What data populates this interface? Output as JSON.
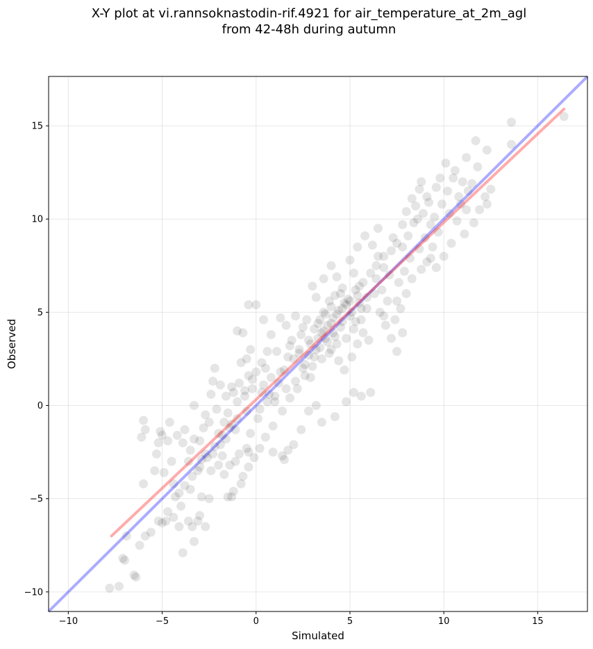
{
  "chart_data": {
    "type": "scatter",
    "title_line1": "X-Y plot at vi.rannsoknastodin-rif.4921 for air_temperature_at_2m_agl",
    "title_line2": "from 42-48h during autumn",
    "xlabel": "Simulated",
    "ylabel": "Observed",
    "xlim": [
      -11.05,
      17.65
    ],
    "ylim": [
      -11.05,
      17.65
    ],
    "xticks": [
      -10,
      -5,
      0,
      5,
      10,
      15
    ],
    "yticks": [
      -10,
      -5,
      0,
      5,
      10,
      15
    ],
    "xtick_labels": [
      "−10",
      "−5",
      "0",
      "5",
      "10",
      "15"
    ],
    "ytick_labels": [
      "−10",
      "−5",
      "0",
      "5",
      "10",
      "15"
    ],
    "grid": true,
    "marker_color": "#000000",
    "marker_opacity": 0.1,
    "identity_line": {
      "color": "#0000ff",
      "opacity": 0.33,
      "x": [
        -11.05,
        17.65
      ],
      "y": [
        -11.05,
        17.65
      ]
    },
    "fit_line": {
      "color": "#ff0000",
      "opacity": 0.33,
      "x": [
        -7.7,
        16.4
      ],
      "y": [
        -7.0,
        15.9
      ]
    },
    "points": [
      [
        -7.8,
        -9.8
      ],
      [
        -7.3,
        -9.7
      ],
      [
        -7.0,
        -8.3
      ],
      [
        -6.4,
        -9.2
      ],
      [
        -6.5,
        -9.1
      ],
      [
        -7.1,
        -8.2
      ],
      [
        -6.9,
        -7.0
      ],
      [
        -5.9,
        -7.0
      ],
      [
        -6.0,
        -4.2
      ],
      [
        -6.1,
        -1.7
      ],
      [
        -5.9,
        -1.3
      ],
      [
        -6.0,
        -0.8
      ],
      [
        -5.4,
        -3.5
      ],
      [
        -5.3,
        -2.6
      ],
      [
        -5.2,
        -2.0
      ],
      [
        -5.0,
        -1.6
      ],
      [
        -5.1,
        -1.4
      ],
      [
        -4.6,
        -0.9
      ],
      [
        -4.7,
        -1.9
      ],
      [
        -4.8,
        -6.2
      ],
      [
        -5.2,
        -6.2
      ],
      [
        -4.4,
        -6.0
      ],
      [
        -4.4,
        -4.2
      ],
      [
        -4.1,
        -4.7
      ],
      [
        -4.0,
        -5.4
      ],
      [
        -4.1,
        -6.5
      ],
      [
        -3.9,
        -7.9
      ],
      [
        -3.6,
        -6.2
      ],
      [
        -3.4,
        -6.5
      ],
      [
        -3.3,
        -7.3
      ],
      [
        -3.1,
        -6.2
      ],
      [
        -3.0,
        -5.9
      ],
      [
        -2.9,
        -4.9
      ],
      [
        -2.5,
        -5.0
      ],
      [
        -2.7,
        -6.5
      ],
      [
        -3.5,
        -4.5
      ],
      [
        -3.1,
        -3.5
      ],
      [
        -2.9,
        -2.9
      ],
      [
        -2.7,
        -2.6
      ],
      [
        -3.6,
        -3.0
      ],
      [
        -3.9,
        -2.0
      ],
      [
        -4.2,
        -1.6
      ],
      [
        -3.8,
        -1.3
      ],
      [
        -3.3,
        -1.8
      ],
      [
        -3.0,
        -1.9
      ],
      [
        -3.3,
        0.0
      ],
      [
        -2.7,
        -0.5
      ],
      [
        -2.5,
        -0.9
      ],
      [
        -2.1,
        -0.2
      ],
      [
        -2.4,
        0.6
      ],
      [
        -2.3,
        1.3
      ],
      [
        -2.2,
        2.0
      ],
      [
        -1.9,
        1.1
      ],
      [
        -1.6,
        0.5
      ],
      [
        -1.5,
        -0.4
      ],
      [
        -1.3,
        -1.0
      ],
      [
        -1.1,
        -1.3
      ],
      [
        -1.6,
        -1.8
      ],
      [
        -1.9,
        -2.1
      ],
      [
        -2.3,
        -2.6
      ],
      [
        -2.0,
        -3.2
      ],
      [
        -1.7,
        -3.7
      ],
      [
        -1.4,
        -3.2
      ],
      [
        -1.1,
        -3.0
      ],
      [
        -0.9,
        -2.6
      ],
      [
        -0.5,
        -2.3
      ],
      [
        -0.4,
        -2.5
      ],
      [
        -0.8,
        -4.2
      ],
      [
        -1.2,
        -4.6
      ],
      [
        -1.3,
        -4.9
      ],
      [
        -1.5,
        -4.9
      ],
      [
        -0.7,
        -3.8
      ],
      [
        -0.4,
        -3.3
      ],
      [
        -0.1,
        -2.8
      ],
      [
        0.2,
        -2.3
      ],
      [
        0.5,
        -1.7
      ],
      [
        0.9,
        -2.5
      ],
      [
        1.4,
        -2.7
      ],
      [
        1.5,
        -2.9
      ],
      [
        1.7,
        -2.4
      ],
      [
        2.0,
        -2.1
      ],
      [
        2.4,
        -1.3
      ],
      [
        2.8,
        -0.3
      ],
      [
        3.2,
        0.0
      ],
      [
        3.5,
        -0.9
      ],
      [
        4.2,
        -0.6
      ],
      [
        4.8,
        0.2
      ],
      [
        5.2,
        0.7
      ],
      [
        5.6,
        0.5
      ],
      [
        6.1,
        0.7
      ],
      [
        -1.0,
        0.2
      ],
      [
        -0.6,
        0.8
      ],
      [
        -0.4,
        1.6
      ],
      [
        -0.8,
        2.3
      ],
      [
        -0.5,
        2.5
      ],
      [
        -0.3,
        3.0
      ],
      [
        -1.0,
        4.0
      ],
      [
        -0.7,
        3.9
      ],
      [
        -0.4,
        5.4
      ],
      [
        0.0,
        5.4
      ],
      [
        0.4,
        4.6
      ],
      [
        0.8,
        3.8
      ],
      [
        0.6,
        2.9
      ],
      [
        0.3,
        2.3
      ],
      [
        0.0,
        1.8
      ],
      [
        0.4,
        1.1
      ],
      [
        0.7,
        0.6
      ],
      [
        1.0,
        0.2
      ],
      [
        1.2,
        1.2
      ],
      [
        1.5,
        1.9
      ],
      [
        1.7,
        2.6
      ],
      [
        1.9,
        3.5
      ],
      [
        1.6,
        4.3
      ],
      [
        1.3,
        4.7
      ],
      [
        2.1,
        4.8
      ],
      [
        2.5,
        4.2
      ],
      [
        2.8,
        3.5
      ],
      [
        2.3,
        2.8
      ],
      [
        2.6,
        2.2
      ],
      [
        2.9,
        1.5
      ],
      [
        3.1,
        2.6
      ],
      [
        3.4,
        3.1
      ],
      [
        3.7,
        3.6
      ],
      [
        3.3,
        4.4
      ],
      [
        3.6,
        5.0
      ],
      [
        3.9,
        5.6
      ],
      [
        3.2,
        5.8
      ],
      [
        3.0,
        6.4
      ],
      [
        3.6,
        6.8
      ],
      [
        4.0,
        7.5
      ],
      [
        4.3,
        6.9
      ],
      [
        4.6,
        6.3
      ],
      [
        4.8,
        5.4
      ],
      [
        5.0,
        4.8
      ],
      [
        4.5,
        4.2
      ],
      [
        4.2,
        3.7
      ],
      [
        4.0,
        3.0
      ],
      [
        4.4,
        2.4
      ],
      [
        4.7,
        1.9
      ],
      [
        5.1,
        2.6
      ],
      [
        5.4,
        3.3
      ],
      [
        5.7,
        3.9
      ],
      [
        5.3,
        4.5
      ],
      [
        5.6,
        5.2
      ],
      [
        5.9,
        5.8
      ],
      [
        5.5,
        6.4
      ],
      [
        5.2,
        7.1
      ],
      [
        5.0,
        7.8
      ],
      [
        5.4,
        8.5
      ],
      [
        5.8,
        9.1
      ],
      [
        6.2,
        8.6
      ],
      [
        6.5,
        8.0
      ],
      [
        6.8,
        7.4
      ],
      [
        6.4,
        6.8
      ],
      [
        6.7,
        6.2
      ],
      [
        7.0,
        5.6
      ],
      [
        6.6,
        5.0
      ],
      [
        6.9,
        4.3
      ],
      [
        7.2,
        3.6
      ],
      [
        7.5,
        2.9
      ],
      [
        7.8,
        3.9
      ],
      [
        7.4,
        4.6
      ],
      [
        7.7,
        5.2
      ],
      [
        8.0,
        6.0
      ],
      [
        7.6,
        6.6
      ],
      [
        7.9,
        7.2
      ],
      [
        8.2,
        7.9
      ],
      [
        7.8,
        8.5
      ],
      [
        8.1,
        9.1
      ],
      [
        8.4,
        9.8
      ],
      [
        8.0,
        10.4
      ],
      [
        8.3,
        11.1
      ],
      [
        8.7,
        11.6
      ],
      [
        9.1,
        11.2
      ],
      [
        8.9,
        10.3
      ],
      [
        9.3,
        9.7
      ],
      [
        9.0,
        9.0
      ],
      [
        8.7,
        8.4
      ],
      [
        9.1,
        7.7
      ],
      [
        9.4,
        8.5
      ],
      [
        9.7,
        9.3
      ],
      [
        9.5,
        10.1
      ],
      [
        9.9,
        10.8
      ],
      [
        10.2,
        11.5
      ],
      [
        9.8,
        12.2
      ],
      [
        10.1,
        13.0
      ],
      [
        10.6,
        12.6
      ],
      [
        11.0,
        12.0
      ],
      [
        10.8,
        11.2
      ],
      [
        11.2,
        10.5
      ],
      [
        10.7,
        9.9
      ],
      [
        11.1,
        9.2
      ],
      [
        10.4,
        8.7
      ],
      [
        10.0,
        8.0
      ],
      [
        9.6,
        7.4
      ],
      [
        11.6,
        9.8
      ],
      [
        11.9,
        10.5
      ],
      [
        12.2,
        11.2
      ],
      [
        11.5,
        11.9
      ],
      [
        11.8,
        12.8
      ],
      [
        12.3,
        13.7
      ],
      [
        11.7,
        14.2
      ],
      [
        11.2,
        13.3
      ],
      [
        12.5,
        11.6
      ],
      [
        12.3,
        10.8
      ],
      [
        13.6,
        15.2
      ],
      [
        13.6,
        14.0
      ],
      [
        16.4,
        15.5
      ],
      [
        1.8,
        0.4
      ],
      [
        2.2,
        0.9
      ],
      [
        1.4,
        -0.3
      ],
      [
        0.9,
        -1.1
      ],
      [
        0.1,
        -0.7
      ],
      [
        -0.3,
        -1.5
      ],
      [
        -2.8,
        -1.2
      ],
      [
        -2.0,
        -1.5
      ],
      [
        -1.7,
        -0.9
      ],
      [
        -1.2,
        0.7
      ],
      [
        -0.2,
        0.9
      ],
      [
        0.5,
        2.0
      ],
      [
        1.1,
        2.9
      ],
      [
        1.8,
        3.2
      ],
      [
        2.4,
        3.8
      ],
      [
        2.7,
        4.6
      ],
      [
        3.1,
        4.1
      ],
      [
        3.5,
        3.9
      ],
      [
        3.8,
        4.3
      ],
      [
        4.1,
        4.7
      ],
      [
        4.4,
        5.1
      ],
      [
        4.7,
        5.5
      ],
      [
        4.2,
        5.9
      ],
      [
        4.5,
        6.0
      ],
      [
        3.4,
        4.6
      ],
      [
        3.7,
        4.9
      ],
      [
        4.0,
        5.3
      ],
      [
        4.9,
        5.7
      ],
      [
        5.3,
        6.2
      ],
      [
        5.7,
        6.6
      ],
      [
        6.1,
        7.1
      ],
      [
        6.4,
        7.5
      ],
      [
        6.8,
        8.0
      ],
      [
        7.2,
        8.3
      ],
      [
        7.5,
        8.7
      ],
      [
        7.1,
        7.0
      ],
      [
        6.3,
        6.0
      ],
      [
        5.9,
        5.2
      ],
      [
        5.6,
        4.6
      ],
      [
        5.2,
        4.1
      ],
      [
        4.8,
        3.6
      ],
      [
        4.3,
        3.3
      ],
      [
        3.9,
        2.8
      ],
      [
        3.5,
        2.5
      ],
      [
        3.0,
        2.1
      ],
      [
        2.6,
        1.6
      ],
      [
        2.1,
        1.3
      ],
      [
        1.6,
        0.9
      ],
      [
        1.0,
        0.5
      ],
      [
        0.6,
        0.2
      ],
      [
        0.2,
        -0.2
      ],
      [
        -0.5,
        -0.3
      ],
      [
        -1.0,
        -0.7
      ],
      [
        -1.4,
        -1.2
      ],
      [
        -1.8,
        -1.6
      ],
      [
        -2.2,
        -2.2
      ],
      [
        -2.6,
        -2.8
      ],
      [
        -3.0,
        -3.3
      ],
      [
        -3.4,
        -3.8
      ],
      [
        -3.8,
        -4.3
      ],
      [
        -4.3,
        -4.9
      ],
      [
        -4.7,
        -5.7
      ],
      [
        -5.0,
        -6.3
      ],
      [
        -5.6,
        -6.8
      ],
      [
        -6.2,
        -7.5
      ],
      [
        2.0,
        2.5
      ],
      [
        2.3,
        3.0
      ],
      [
        2.9,
        3.3
      ],
      [
        3.3,
        3.6
      ],
      [
        3.6,
        4.0
      ],
      [
        4.0,
        4.4
      ],
      [
        4.3,
        4.9
      ],
      [
        4.6,
        5.2
      ],
      [
        5.0,
        5.6
      ],
      [
        5.4,
        5.9
      ],
      [
        3.8,
        3.4
      ],
      [
        4.1,
        3.9
      ],
      [
        4.6,
        4.5
      ],
      [
        5.1,
        5.0
      ],
      [
        5.5,
        5.5
      ],
      [
        2.5,
        2.0
      ],
      [
        2.8,
        2.7
      ],
      [
        3.2,
        3.0
      ],
      [
        -0.9,
        1.2
      ],
      [
        -0.6,
        0.5
      ],
      [
        -1.3,
        1.0
      ],
      [
        -0.2,
        1.4
      ],
      [
        0.3,
        0.7
      ],
      [
        0.8,
        1.5
      ],
      [
        1.3,
        1.8
      ],
      [
        -3.5,
        -2.4
      ],
      [
        -2.4,
        -3.5
      ],
      [
        -1.8,
        -2.7
      ],
      [
        -4.5,
        -3.0
      ],
      [
        -4.9,
        -3.6
      ],
      [
        6.5,
        9.5
      ],
      [
        7.3,
        9.0
      ],
      [
        7.8,
        9.7
      ],
      [
        8.6,
        10.0
      ],
      [
        8.5,
        10.7
      ],
      [
        9.2,
        10.9
      ],
      [
        6.0,
        3.5
      ],
      [
        6.8,
        4.8
      ],
      [
        7.5,
        5.6
      ],
      [
        8.3,
        6.8
      ],
      [
        8.8,
        7.3
      ],
      [
        9.3,
        7.9
      ],
      [
        10.3,
        10.3
      ],
      [
        10.9,
        10.8
      ],
      [
        11.3,
        11.5
      ],
      [
        9.6,
        11.7
      ],
      [
        10.5,
        12.2
      ],
      [
        8.8,
        12.0
      ]
    ]
  }
}
